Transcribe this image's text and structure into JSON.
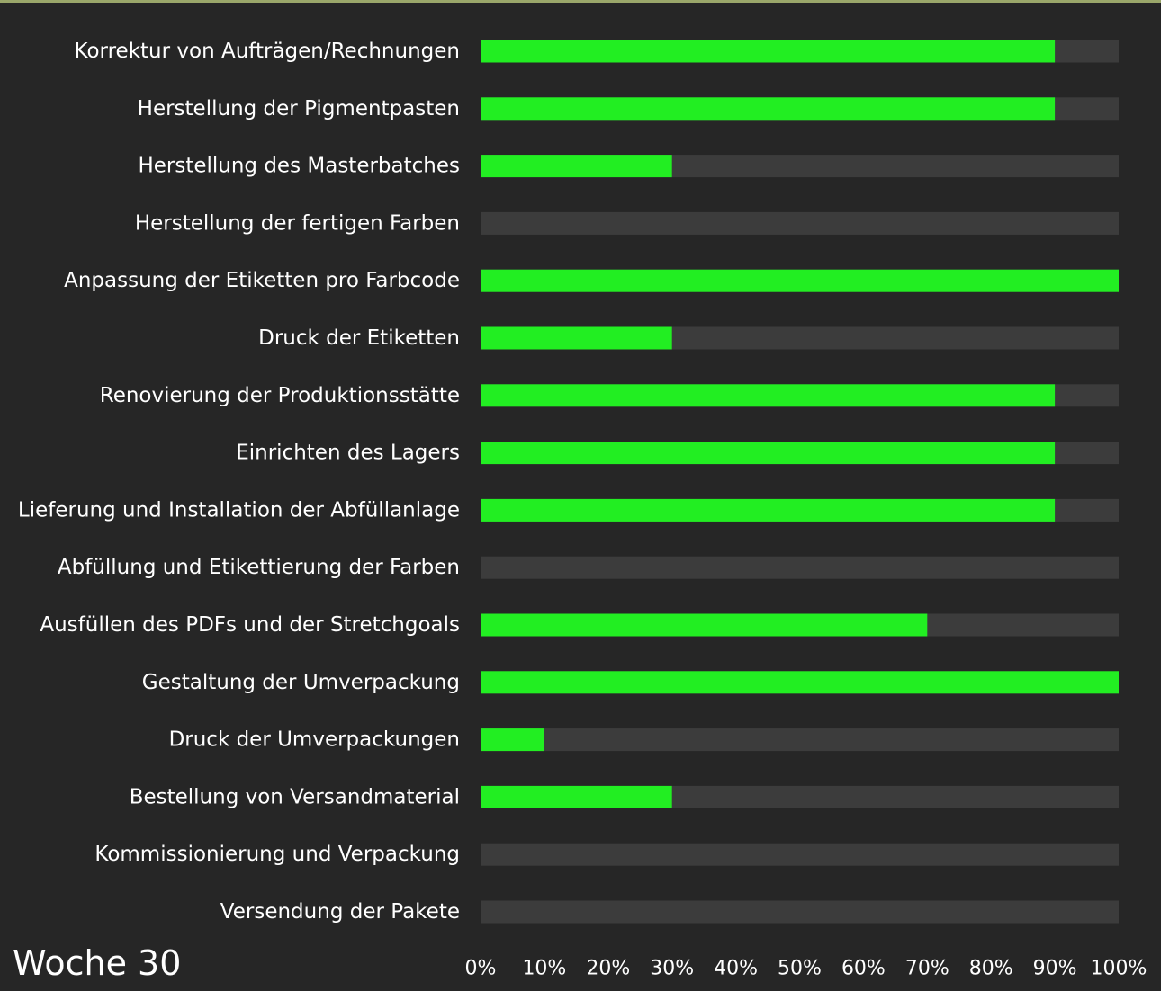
{
  "week_label": "Woche 30",
  "colors": {
    "background": "#262626",
    "track": "#3c3c3c",
    "progress": "#22ee22",
    "text": "#ffffff",
    "top_rule": "#9aa66a"
  },
  "chart_data": {
    "type": "bar",
    "orientation": "horizontal",
    "categories": [
      "Korrektur von Aufträgen/Rechnungen",
      "Herstellung der Pigmentpasten",
      "Herstellung des Masterbatches",
      "Herstellung der fertigen Farben",
      "Anpassung der Etiketten pro Farbcode",
      "Druck der Etiketten",
      "Renovierung der Produktionsstätte",
      "Einrichten des Lagers",
      "Lieferung und Installation der Abfüllanlage",
      "Abfüllung und Etikettierung der Farben",
      "Ausfüllen des PDFs und der Stretchgoals",
      "Gestaltung der Umverpackung",
      "Druck der Umverpackungen",
      "Bestellung von Versandmaterial",
      "Kommissionierung und Verpackung",
      "Versendung der Pakete"
    ],
    "values": [
      90,
      90,
      30,
      0,
      100,
      30,
      90,
      90,
      90,
      0,
      70,
      100,
      10,
      30,
      0,
      0
    ],
    "xlim": [
      0,
      100
    ],
    "x_ticks": [
      "0%",
      "10%",
      "20%",
      "30%",
      "40%",
      "50%",
      "60%",
      "70%",
      "80%",
      "90%",
      "100%"
    ],
    "grid": false,
    "legend": "none"
  }
}
